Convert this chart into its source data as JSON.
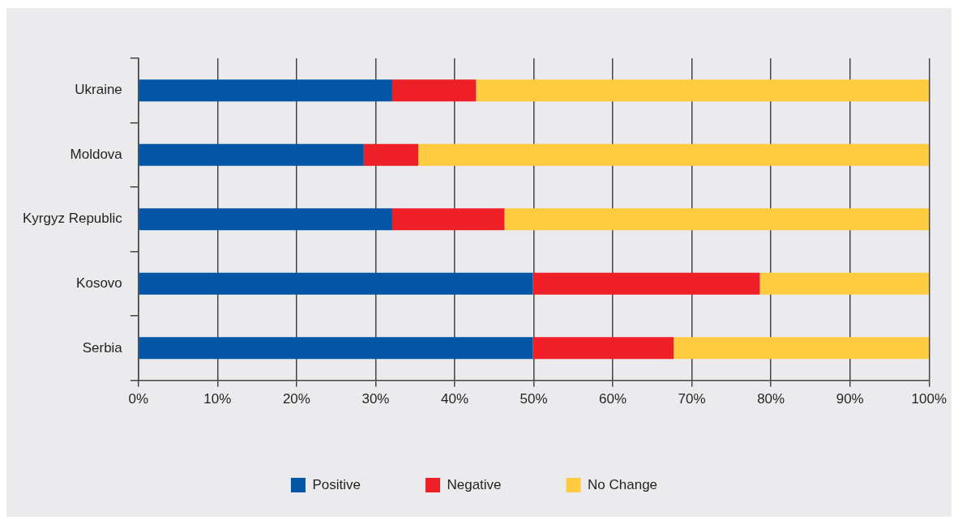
{
  "chart_data": {
    "type": "bar",
    "orientation": "horizontal",
    "stacked": true,
    "categories": [
      "Ukraine",
      "Moldova",
      "Kyrgyz Republic",
      "Kosovo",
      "Serbia"
    ],
    "series": [
      {
        "name": "Positive",
        "color": "#0356a6",
        "values": [
          32.1,
          28.5,
          32.1,
          49.9,
          49.9
        ]
      },
      {
        "name": "Negative",
        "color": "#ee1f26",
        "values": [
          10.6,
          6.9,
          14.2,
          28.7,
          17.8
        ]
      },
      {
        "name": "No Change",
        "color": "#ffcb40",
        "values": [
          57.3,
          64.6,
          53.7,
          21.4,
          32.3
        ]
      }
    ],
    "xlim": [
      0,
      100
    ],
    "xticks": [
      {
        "value": 0,
        "label": "0%"
      },
      {
        "value": 10,
        "label": "10%"
      },
      {
        "value": 20,
        "label": "20%"
      },
      {
        "value": 30,
        "label": "30%"
      },
      {
        "value": 40,
        "label": "40%"
      },
      {
        "value": 50,
        "label": "50%"
      },
      {
        "value": 60,
        "label": "60%"
      },
      {
        "value": 70,
        "label": "70%"
      },
      {
        "value": 80,
        "label": "80%"
      },
      {
        "value": 90,
        "label": "90%"
      },
      {
        "value": 100,
        "label": "100%"
      }
    ],
    "grid": "x",
    "legend": "bottom"
  }
}
